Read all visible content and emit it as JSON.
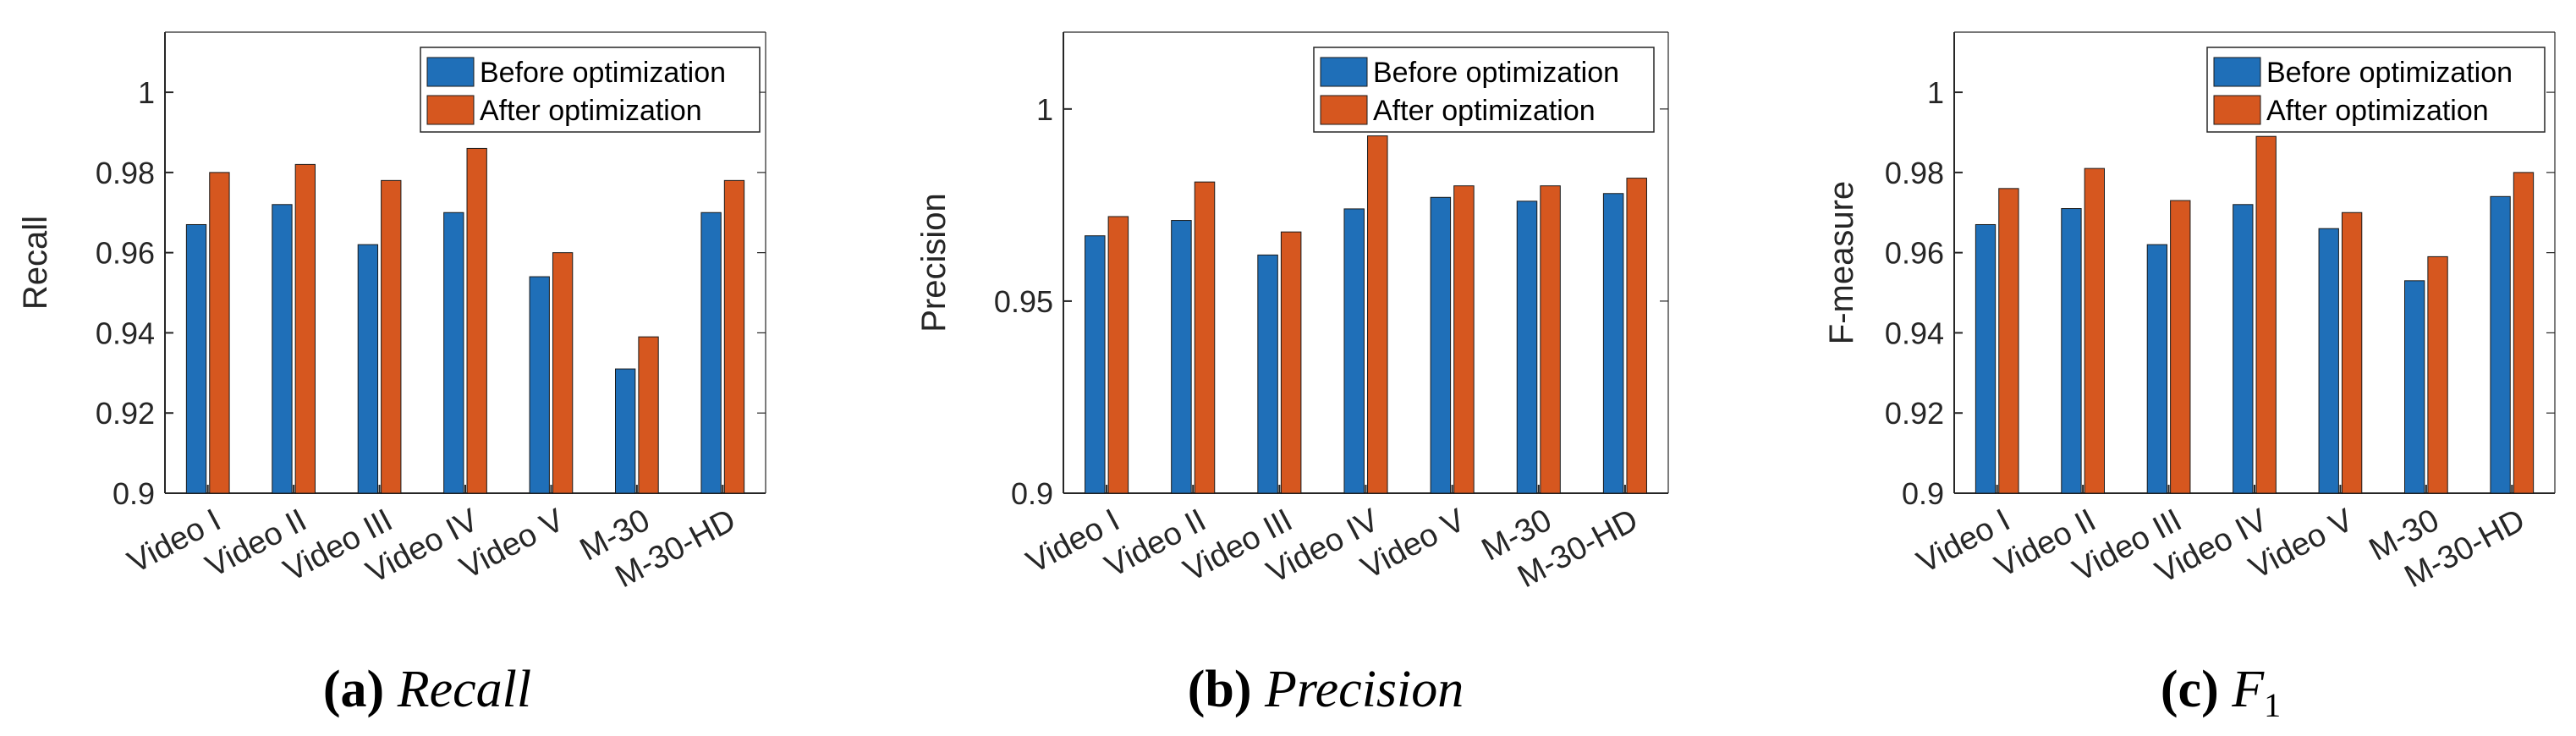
{
  "colors": {
    "before": "#1f6fb8",
    "after": "#d6571f",
    "axis": "#262626",
    "edge": "#1a1a1a"
  },
  "chart_data": [
    {
      "type": "bar",
      "categories": [
        "Video I",
        "Video II",
        "Video III",
        "Video IV",
        "Video V",
        "M-30",
        "M-30-HD"
      ],
      "series": [
        {
          "name": "Before optimization",
          "values": [
            0.967,
            0.972,
            0.962,
            0.97,
            0.954,
            0.931,
            0.97
          ]
        },
        {
          "name": "After optimization",
          "values": [
            0.98,
            0.982,
            0.978,
            0.986,
            0.96,
            0.939,
            0.978
          ]
        }
      ],
      "ylabel": "Recall",
      "ylim": [
        0.9,
        1.015
      ],
      "yticks": [
        0.9,
        0.92,
        0.94,
        0.96,
        0.98,
        1
      ],
      "ytick_labels": [
        "0.9",
        "0.92",
        "0.94",
        "0.96",
        "0.98",
        "1"
      ],
      "legend_position": "top-right",
      "caption_letter": "(a)",
      "caption_text": "Recall",
      "caption_sub": ""
    },
    {
      "type": "bar",
      "categories": [
        "Video I",
        "Video II",
        "Video III",
        "Video IV",
        "Video V",
        "M-30",
        "M-30-HD"
      ],
      "series": [
        {
          "name": "Before optimization",
          "values": [
            0.967,
            0.971,
            0.962,
            0.974,
            0.977,
            0.976,
            0.978
          ]
        },
        {
          "name": "After optimization",
          "values": [
            0.972,
            0.981,
            0.968,
            0.993,
            0.98,
            0.98,
            0.982
          ]
        }
      ],
      "ylabel": "Precision",
      "ylim": [
        0.9,
        1.02
      ],
      "yticks": [
        0.9,
        0.95,
        1
      ],
      "ytick_labels": [
        "0.9",
        "0.95",
        "1"
      ],
      "legend_position": "top-right",
      "caption_letter": "(b)",
      "caption_text": "Precision",
      "caption_sub": ""
    },
    {
      "type": "bar",
      "categories": [
        "Video I",
        "Video II",
        "Video III",
        "Video IV",
        "Video V",
        "M-30",
        "M-30-HD"
      ],
      "series": [
        {
          "name": "Before optimization",
          "values": [
            0.967,
            0.971,
            0.962,
            0.972,
            0.966,
            0.953,
            0.974
          ]
        },
        {
          "name": "After optimization",
          "values": [
            0.976,
            0.981,
            0.973,
            0.989,
            0.97,
            0.959,
            0.98
          ]
        }
      ],
      "ylabel": "F-measure",
      "ylim": [
        0.9,
        1.015
      ],
      "yticks": [
        0.9,
        0.92,
        0.94,
        0.96,
        0.98,
        1
      ],
      "ytick_labels": [
        "0.9",
        "0.92",
        "0.94",
        "0.96",
        "0.98",
        "1"
      ],
      "legend_position": "top-right",
      "caption_letter": "(c)",
      "caption_text": "F",
      "caption_sub": "1"
    }
  ]
}
